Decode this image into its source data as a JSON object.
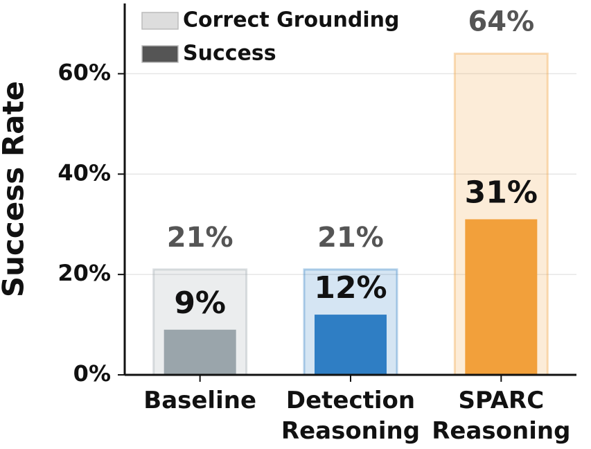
{
  "chart_data": {
    "type": "bar",
    "y_label": "Success Rate",
    "categories": [
      "Baseline",
      "Detection\nReasoning",
      "SPARC\nReasoning"
    ],
    "category_colors": [
      "#9aa5ab",
      "#2f7ec4",
      "#f2a03b"
    ],
    "series": [
      {
        "name": "Correct Grounding",
        "color": "#d9d9d9",
        "values": [
          21,
          21,
          64
        ],
        "value_labels": [
          "21%",
          "21%",
          "64%"
        ]
      },
      {
        "name": "Success",
        "color": "#555555",
        "values": [
          9,
          12,
          31
        ],
        "value_labels": [
          "9%",
          "12%",
          "31%"
        ]
      }
    ],
    "ylim": [
      0,
      74
    ],
    "yticks": [
      {
        "value": 0,
        "label": "0%"
      },
      {
        "value": 20,
        "label": "20%"
      },
      {
        "value": 40,
        "label": "40%"
      },
      {
        "value": 60,
        "label": "60%"
      }
    ],
    "grid": true,
    "legend": "upper left"
  }
}
